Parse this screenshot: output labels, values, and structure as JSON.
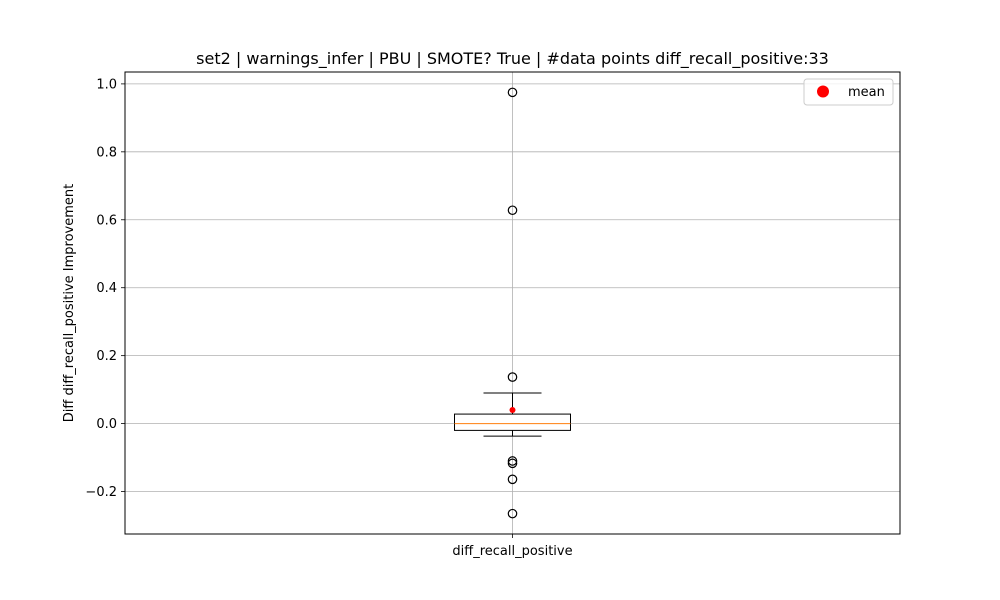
{
  "chart_data": {
    "type": "box",
    "title": "set2 | warnings_infer | PBU | SMOTE? True | #data points diff_recall_positive:33",
    "xlabel": "",
    "ylabel": "Diff diff_recall_positive Improvement",
    "categories": [
      "diff_recall_positive"
    ],
    "ylim": [
      -0.325,
      1.035
    ],
    "yticks": [
      -0.2,
      0.0,
      0.2,
      0.4,
      0.6,
      0.8,
      1.0
    ],
    "ytick_labels": [
      "−0.2",
      "0.0",
      "0.2",
      "0.4",
      "0.6",
      "0.8",
      "1.0"
    ],
    "grid": true,
    "legend": {
      "placement": "top-right",
      "entries": [
        {
          "label": "mean",
          "color": "#ff0000",
          "marker": "circle"
        }
      ]
    },
    "boxes": [
      {
        "name": "diff_recall_positive",
        "whisker_low": -0.037,
        "q1": -0.02,
        "median": 0.0,
        "q3": 0.028,
        "whisker_high": 0.09,
        "mean": 0.04,
        "outliers": [
          0.975,
          0.628,
          0.137,
          -0.11,
          -0.117,
          -0.164,
          -0.265
        ]
      }
    ],
    "colors": {
      "box": "#000000",
      "median": "#ff7f0e",
      "mean": "#ff0000",
      "grid": "#b0b0b0"
    }
  }
}
